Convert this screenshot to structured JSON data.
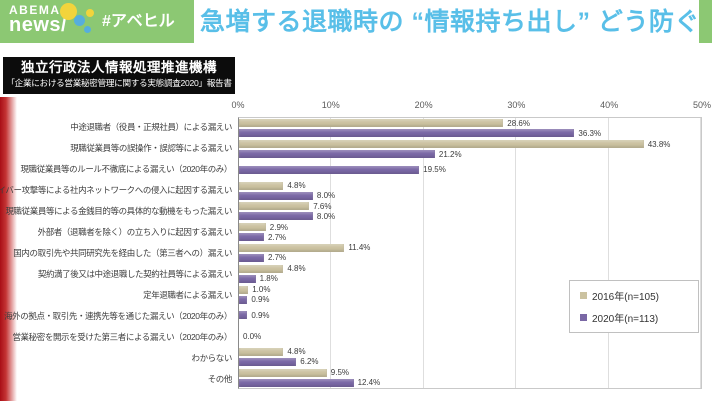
{
  "header": {
    "brand_line1": "ABEMA",
    "brand_line2": "news/",
    "hashtag": "#アベヒル",
    "headline": "急増する退職時の “情報持ち出し” どう防ぐ？",
    "colors": {
      "brand_green": "#8cc873",
      "headline_blue": "#59bfe8"
    }
  },
  "source": {
    "line1": "独立行政法人情報処理推進機構",
    "line2": "「企業における営業秘密管理に関する実態調査2020」報告書"
  },
  "chart_data": {
    "type": "bar",
    "orientation": "horizontal",
    "title": "",
    "xlabel": "",
    "ylabel": "",
    "xlim": [
      0,
      50
    ],
    "x_ticks": [
      "0%",
      "10%",
      "20%",
      "30%",
      "40%",
      "50%"
    ],
    "grid": true,
    "legend_position": "right-middle",
    "categories": [
      "中途退職者（役員・正規社員）による漏えい",
      "現職従業員等の誤操作・誤認等による漏えい",
      "現職従業員等のルール不徹底による漏えい（2020年のみ）",
      "サイバー攻撃等による社内ネットワークへの侵入に起因する漏えい",
      "現職従業員等による金銭目的等の具体的な動機をもった漏えい",
      "外部者（退職者を除く）の立ち入りに起因する漏えい",
      "国内の取引先や共同研究先を経由した（第三者への）漏えい",
      "契約満了後又は中途退職した契約社員等による漏えい",
      "定年退職者による漏えい",
      "海外の拠点・取引先・連携先等を通じた漏えい（2020年のみ）",
      "営業秘密を開示を受けた第三者による漏えい（2020年のみ）",
      "わからない",
      "その他"
    ],
    "series": [
      {
        "name": "2016年(n=105)",
        "color": "#cbc2a0",
        "values": [
          28.6,
          43.8,
          null,
          4.8,
          7.6,
          2.9,
          11.4,
          4.8,
          1.0,
          null,
          null,
          4.8,
          9.5
        ]
      },
      {
        "name": "2020年(n=113)",
        "color": "#7a68a5",
        "values": [
          36.3,
          21.2,
          19.5,
          8.0,
          8.0,
          2.7,
          2.7,
          1.8,
          0.9,
          0.9,
          0.0,
          6.2,
          12.4
        ]
      }
    ]
  }
}
